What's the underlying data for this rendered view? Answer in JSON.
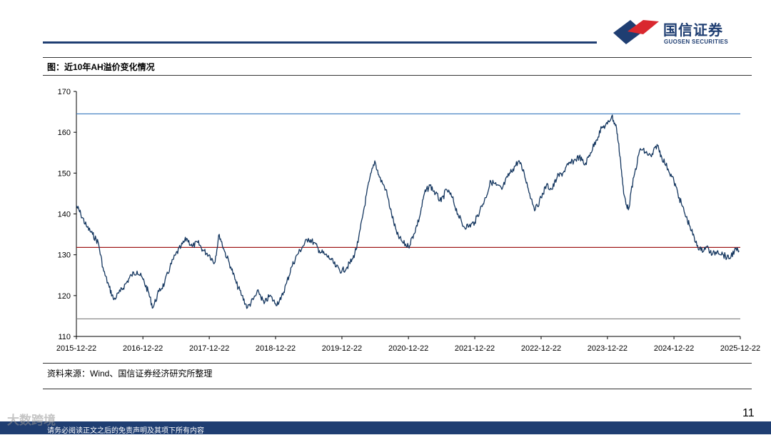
{
  "header": {
    "logo_cn": "国信证券",
    "logo_en": "GUOSEN SECURITIES",
    "colors": {
      "navy": "#1f3e72",
      "red": "#d9282f"
    }
  },
  "figure_title": "图：近10年AH溢价变化情况",
  "source_note": "资料来源：Wind、国信证券经济研究所整理",
  "page_number": "11",
  "footer": {
    "disclaimer": "请务必阅读正文之后的免责声明及其项下所有内容",
    "watermark": "大数跨境"
  },
  "chart_data": {
    "type": "line",
    "ylim": [
      110,
      170
    ],
    "y_ticks": [
      "110",
      "120",
      "130",
      "140",
      "150",
      "160",
      "170"
    ],
    "x_ticks": [
      "2015-12-22",
      "2016-12-22",
      "2017-12-22",
      "2018-12-22",
      "2019-12-22",
      "2020-12-22",
      "2021-12-22",
      "2022-12-22",
      "2023-12-22",
      "2024-12-22",
      "2025-12-22"
    ],
    "series": [
      {
        "color": "#14365f",
        "points": [
          [
            "2015-12-22",
            142
          ],
          [
            "2016-01-15",
            140
          ],
          [
            "2016-02-15",
            137
          ],
          [
            "2016-03-20",
            135
          ],
          [
            "2016-04-20",
            133
          ],
          [
            "2016-05-20",
            126
          ],
          [
            "2016-06-20",
            122
          ],
          [
            "2016-07-15",
            119
          ],
          [
            "2016-08-20",
            121
          ],
          [
            "2016-09-20",
            123
          ],
          [
            "2016-10-20",
            125
          ],
          [
            "2016-11-20",
            126
          ],
          [
            "2016-12-22",
            124
          ],
          [
            "2017-01-20",
            121
          ],
          [
            "2017-02-15",
            117
          ],
          [
            "2017-03-20",
            121
          ],
          [
            "2017-04-20",
            123
          ],
          [
            "2017-05-20",
            127
          ],
          [
            "2017-06-20",
            130
          ],
          [
            "2017-07-20",
            132
          ],
          [
            "2017-08-20",
            134
          ],
          [
            "2017-09-20",
            132
          ],
          [
            "2017-10-20",
            133
          ],
          [
            "2017-11-20",
            131
          ],
          [
            "2017-12-22",
            130
          ],
          [
            "2018-01-20",
            128
          ],
          [
            "2018-02-15",
            135
          ],
          [
            "2018-03-15",
            131
          ],
          [
            "2018-04-20",
            127
          ],
          [
            "2018-05-20",
            123
          ],
          [
            "2018-06-20",
            120
          ],
          [
            "2018-07-20",
            117
          ],
          [
            "2018-08-20",
            119
          ],
          [
            "2018-09-20",
            121
          ],
          [
            "2018-10-20",
            118
          ],
          [
            "2018-11-20",
            120
          ],
          [
            "2018-12-22",
            118
          ],
          [
            "2019-01-20",
            119
          ],
          [
            "2019-02-20",
            123
          ],
          [
            "2019-03-20",
            127
          ],
          [
            "2019-04-20",
            130
          ],
          [
            "2019-05-20",
            132
          ],
          [
            "2019-06-20",
            134
          ],
          [
            "2019-07-20",
            133
          ],
          [
            "2019-08-20",
            131
          ],
          [
            "2019-09-20",
            130
          ],
          [
            "2019-10-20",
            129
          ],
          [
            "2019-11-20",
            127
          ],
          [
            "2019-12-22",
            126
          ],
          [
            "2020-01-20",
            127
          ],
          [
            "2020-02-20",
            129
          ],
          [
            "2020-03-20",
            133
          ],
          [
            "2020-04-20",
            141
          ],
          [
            "2020-05-20",
            148
          ],
          [
            "2020-06-20",
            153
          ],
          [
            "2020-07-15",
            149
          ],
          [
            "2020-08-20",
            146
          ],
          [
            "2020-09-20",
            140
          ],
          [
            "2020-10-20",
            135
          ],
          [
            "2020-11-20",
            133
          ],
          [
            "2020-12-22",
            132
          ],
          [
            "2021-01-20",
            135
          ],
          [
            "2021-02-20",
            139
          ],
          [
            "2021-03-20",
            145
          ],
          [
            "2021-04-20",
            147
          ],
          [
            "2021-05-20",
            145
          ],
          [
            "2021-06-20",
            143
          ],
          [
            "2021-07-20",
            146
          ],
          [
            "2021-08-20",
            144
          ],
          [
            "2021-09-20",
            140
          ],
          [
            "2021-10-20",
            137
          ],
          [
            "2021-11-20",
            137
          ],
          [
            "2021-12-22",
            138
          ],
          [
            "2022-01-20",
            141
          ],
          [
            "2022-02-20",
            144
          ],
          [
            "2022-03-20",
            148
          ],
          [
            "2022-04-20",
            147
          ],
          [
            "2022-05-20",
            146
          ],
          [
            "2022-06-20",
            149
          ],
          [
            "2022-07-20",
            151
          ],
          [
            "2022-08-20",
            153
          ],
          [
            "2022-09-20",
            150
          ],
          [
            "2022-10-20",
            145
          ],
          [
            "2022-11-20",
            141
          ],
          [
            "2022-12-22",
            144
          ],
          [
            "2023-01-20",
            147
          ],
          [
            "2023-02-20",
            146
          ],
          [
            "2023-03-20",
            149
          ],
          [
            "2023-04-20",
            150
          ],
          [
            "2023-05-20",
            152
          ],
          [
            "2023-06-20",
            153
          ],
          [
            "2023-07-20",
            154
          ],
          [
            "2023-08-20",
            152
          ],
          [
            "2023-09-20",
            155
          ],
          [
            "2023-10-20",
            158
          ],
          [
            "2023-11-20",
            161
          ],
          [
            "2023-12-22",
            162
          ],
          [
            "2024-01-15",
            164
          ],
          [
            "2024-02-10",
            161
          ],
          [
            "2024-03-01",
            154
          ],
          [
            "2024-03-20",
            145
          ],
          [
            "2024-04-15",
            141
          ],
          [
            "2024-05-15",
            149
          ],
          [
            "2024-06-20",
            156
          ],
          [
            "2024-07-20",
            155
          ],
          [
            "2024-08-20",
            154
          ],
          [
            "2024-09-20",
            157
          ],
          [
            "2024-10-15",
            154
          ],
          [
            "2024-11-20",
            151
          ],
          [
            "2024-12-22",
            148
          ],
          [
            "2025-01-20",
            144
          ],
          [
            "2025-02-20",
            140
          ],
          [
            "2025-03-20",
            137
          ],
          [
            "2025-04-20",
            133
          ],
          [
            "2025-05-20",
            131
          ],
          [
            "2025-06-20",
            132
          ],
          [
            "2025-07-20",
            130
          ],
          [
            "2025-08-20",
            131
          ],
          [
            "2025-09-20",
            130
          ],
          [
            "2025-10-20",
            129
          ],
          [
            "2025-11-20",
            131
          ],
          [
            "2025-12-15",
            131
          ]
        ]
      }
    ],
    "reference_lines": [
      {
        "y": 164.5,
        "color": "#3a7bbf"
      },
      {
        "y": 131.8,
        "color": "#a01c1c"
      },
      {
        "y": 114.3,
        "color": "#808080"
      }
    ]
  }
}
